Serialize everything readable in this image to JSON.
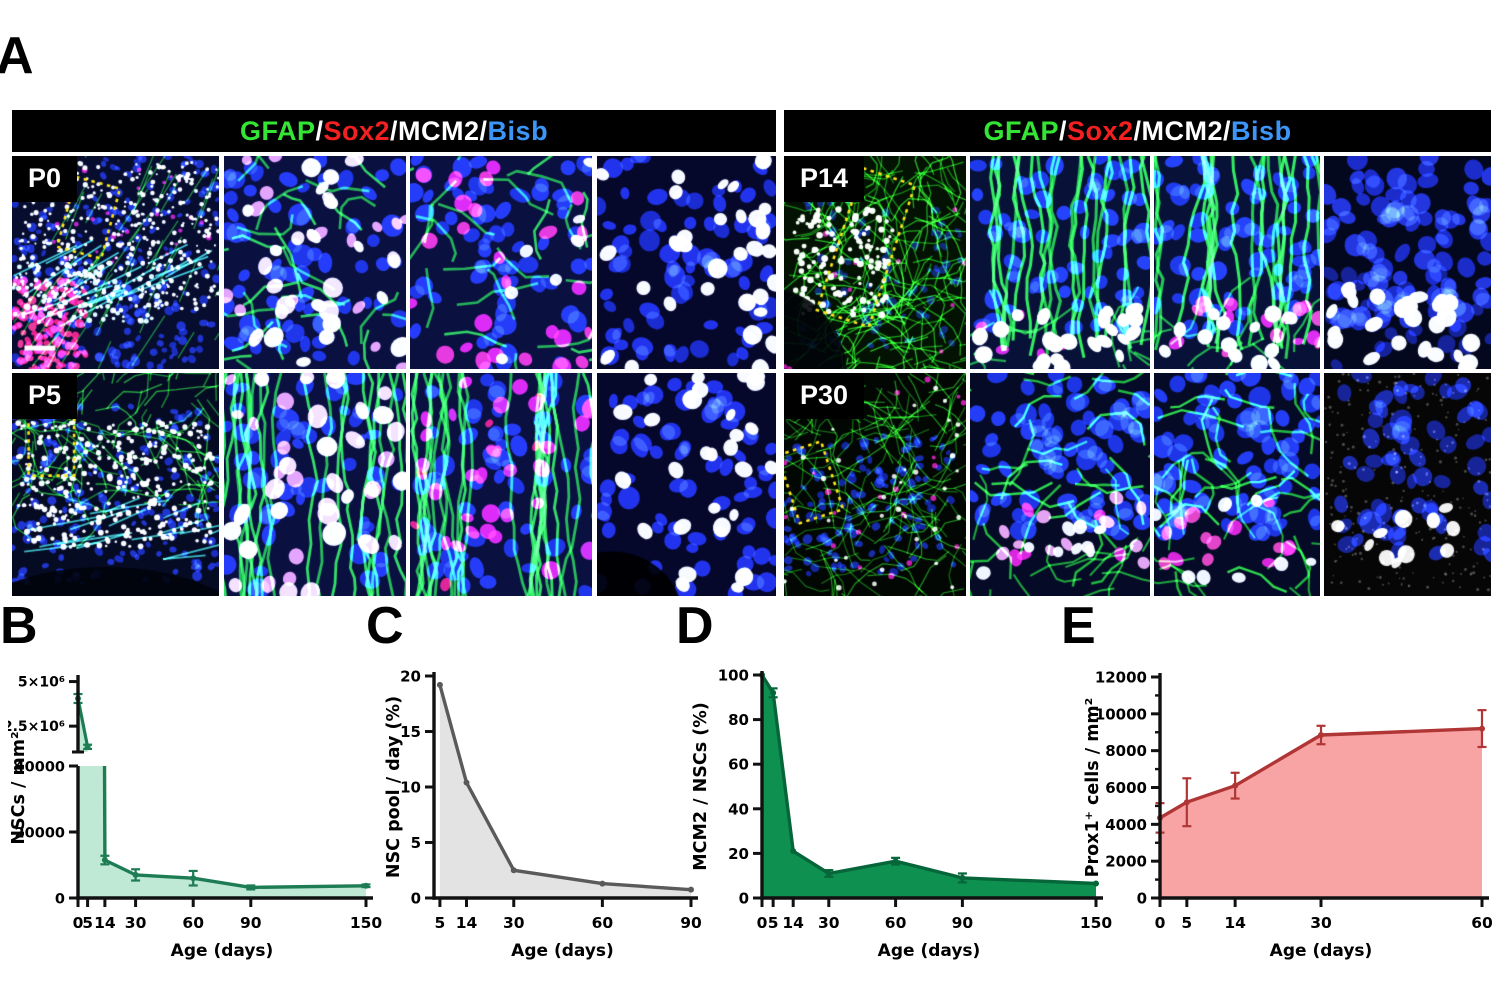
{
  "figure": {
    "panel_a_label": "A",
    "channel_header": {
      "background": "#000000",
      "parts": [
        {
          "text": "GFAP",
          "color": "#35e535"
        },
        {
          "text": "/",
          "color": "#ffffff"
        },
        {
          "text": "Sox2",
          "color": "#f22020"
        },
        {
          "text": "/",
          "color": "#ffffff"
        },
        {
          "text": "MCM2",
          "color": "#ffffff"
        },
        {
          "text": "/",
          "color": "#ffffff"
        },
        {
          "text": "Bisb",
          "color": "#3b96f8"
        }
      ]
    },
    "image_labels": [
      "P0",
      "P5",
      "P14",
      "P30"
    ],
    "roi_color": "#ffe81a",
    "scalebar_color": "#ffffff"
  },
  "chart_data": [
    {
      "panel": "B",
      "type": "area",
      "broken_y_axis": true,
      "xlabel": "Age (days)",
      "ylabel": "NSCs / mm²",
      "x": [
        0,
        5,
        14,
        30,
        60,
        90,
        150
      ],
      "y": [
        4050000,
        1340000,
        11500,
        7000,
        6000,
        3200,
        3700
      ],
      "yerr": [
        250000,
        120000,
        1300,
        1700,
        2200,
        600,
        400
      ],
      "xlim": [
        0,
        150
      ],
      "upper_axis": {
        "range": [
          1050000,
          5200000
        ],
        "ticks": [
          {
            "value": 5000000,
            "label": "5×10⁶"
          },
          {
            "value": 2500000,
            "label": "2.5×10⁶"
          }
        ]
      },
      "lower_axis": {
        "range": [
          0,
          40000
        ],
        "ticks": [
          {
            "value": 40000,
            "label": "40000"
          },
          {
            "value": 20000,
            "label": "20000"
          },
          {
            "value": 0,
            "label": "0"
          }
        ]
      },
      "line_color": "#1e7c54",
      "fill_color": "#bfe9d4"
    },
    {
      "panel": "C",
      "type": "area",
      "xlabel": "Age (days)",
      "ylabel": "NSC pool / day (%)",
      "x": [
        5,
        14,
        30,
        60,
        90
      ],
      "y": [
        19.2,
        10.4,
        2.5,
        1.3,
        0.75
      ],
      "yerr": [
        0,
        0,
        0,
        0,
        0
      ],
      "xlim": [
        3,
        90
      ],
      "ylim": [
        0,
        20
      ],
      "yticks": [
        0,
        5,
        10,
        15,
        20
      ],
      "line_color": "#5a5a5a",
      "fill_color": "#e3e3e3"
    },
    {
      "panel": "D",
      "type": "area",
      "xlabel": "Age (days)",
      "ylabel": "MCM2 / NSCs (%)",
      "x": [
        0,
        5,
        14,
        30,
        60,
        90,
        150
      ],
      "y": [
        100,
        92,
        21,
        11,
        16.5,
        9,
        6.5
      ],
      "yerr": [
        0,
        2,
        0,
        1.5,
        1.5,
        2,
        0
      ],
      "xlim": [
        0,
        150
      ],
      "ylim": [
        0,
        100
      ],
      "yticks": [
        0,
        20,
        40,
        60,
        80,
        100
      ],
      "line_color": "#06663a",
      "fill_color": "#0e9150"
    },
    {
      "panel": "E",
      "type": "area",
      "xlabel": "Age (days)",
      "ylabel": "Prox1⁺ cells / mm²",
      "x": [
        0,
        5,
        14,
        30,
        60
      ],
      "y": [
        4350,
        5200,
        6100,
        8850,
        9200
      ],
      "yerr": [
        800,
        1300,
        700,
        500,
        1000
      ],
      "xlim": [
        0,
        60
      ],
      "ylim": [
        0,
        12000
      ],
      "yticks": [
        0,
        2000,
        4000,
        6000,
        8000,
        10000,
        12000
      ],
      "y_minor_step": 1000,
      "line_color": "#b03636",
      "fill_color": "#f9a4a4"
    }
  ]
}
